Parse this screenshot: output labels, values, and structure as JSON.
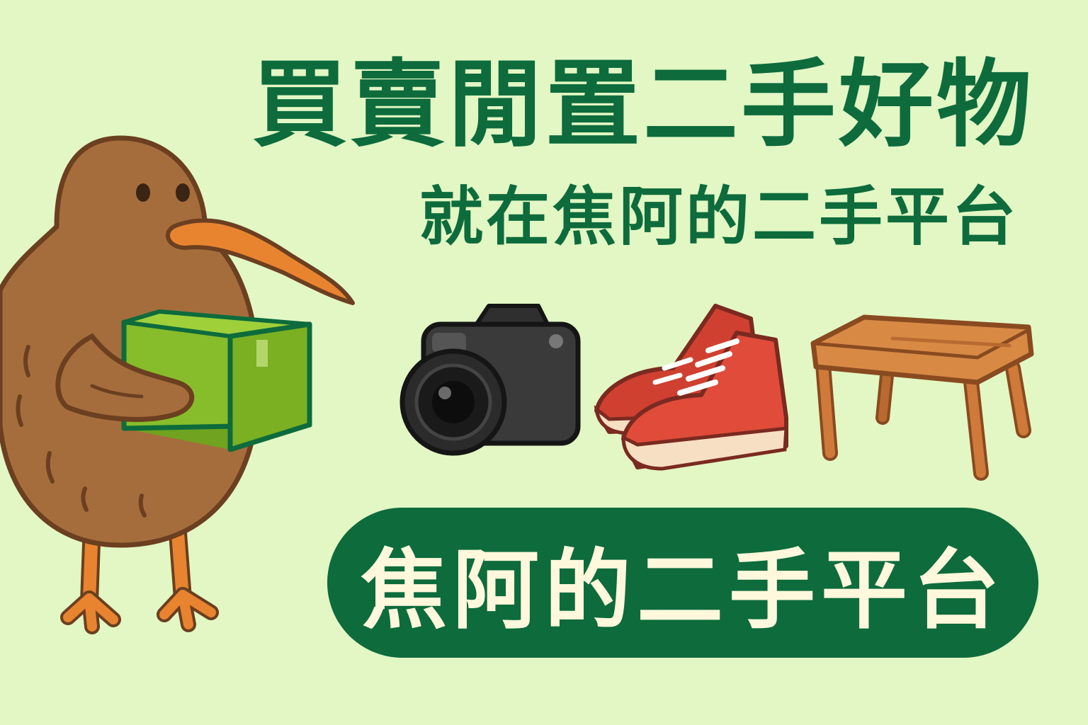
{
  "banner": {
    "headline": "買賣閒置二手好物",
    "subline": "就在焦阿的二手平台",
    "cta_label": "焦阿的二手平台"
  },
  "illustrations": {
    "mascot": "kiwi-bird-icon",
    "package": "package-box-icon",
    "items": [
      "camera-icon",
      "sneakers-icon",
      "wooden-stool-icon"
    ]
  },
  "colors": {
    "background": "#e2f7c4",
    "brand_green": "#0d6b3c",
    "cta_text": "#fff8dc",
    "kiwi_body": "#a66d3c",
    "beak": "#e8842f",
    "box_green": "#87bd2a",
    "sneaker_red": "#e04b3a",
    "wood": "#cf7a3a"
  }
}
